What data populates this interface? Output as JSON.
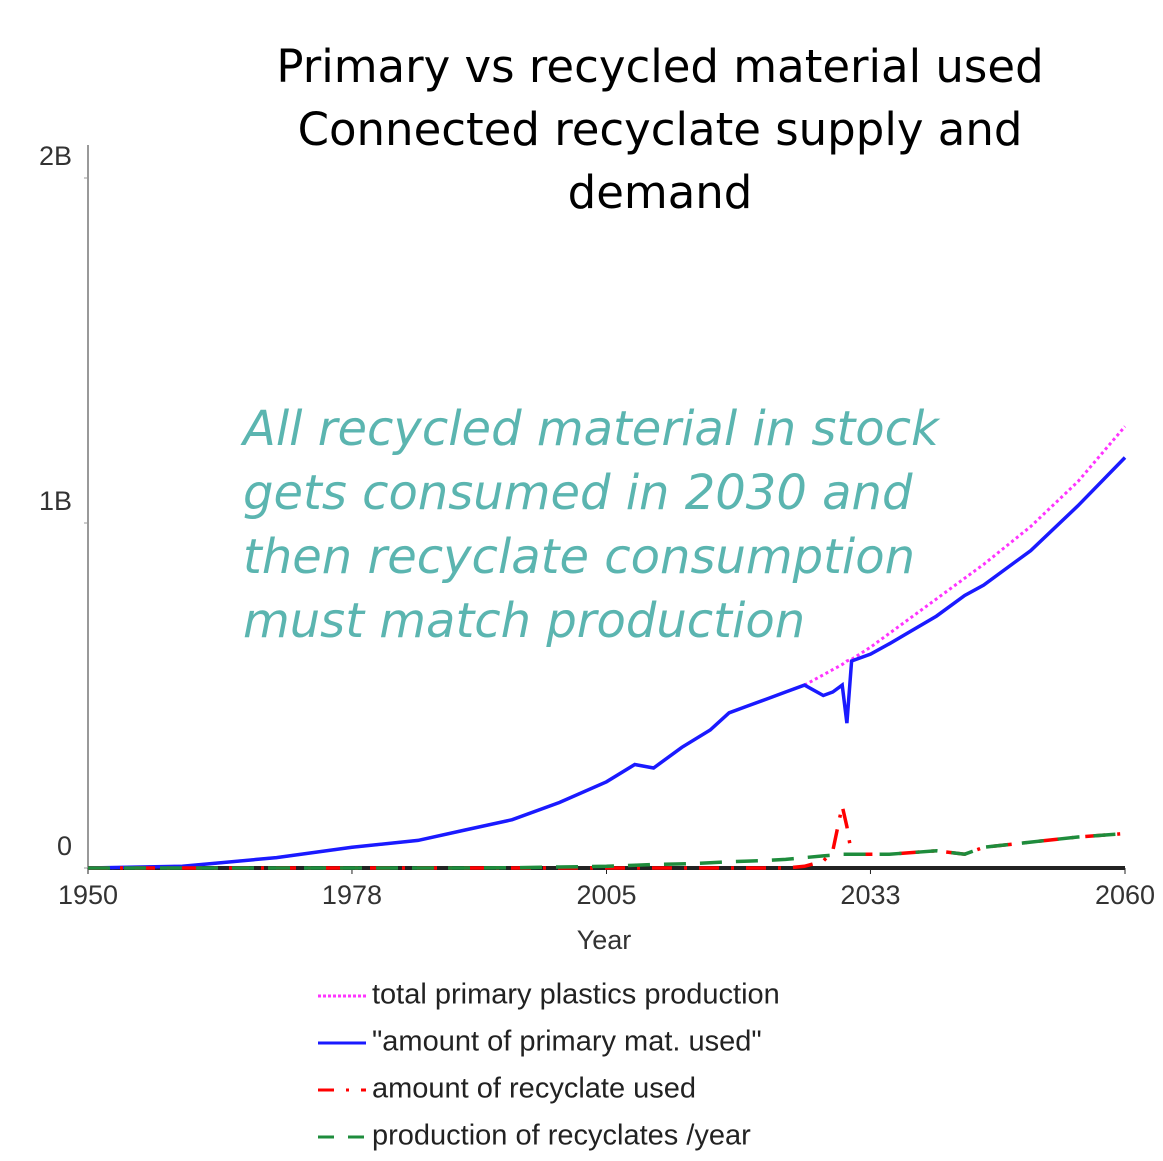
{
  "chart_data": {
    "type": "line",
    "title_lines": [
      "Primary vs recycled material used",
      "Connected recyclate supply and",
      "demand"
    ],
    "annotation_lines": [
      "All recycled material in stock",
      "gets consumed in 2030 and",
      "then recyclate consumption",
      "must match production"
    ],
    "xlabel": "Year",
    "xlim": [
      1950,
      2060
    ],
    "xticks": [
      1950,
      1978,
      2005,
      2033,
      2060
    ],
    "ylim": [
      0,
      2000000000
    ],
    "yticks": [
      {
        "value": 0,
        "label": "0"
      },
      {
        "value": 1000000000,
        "label": "1B"
      },
      {
        "value": 2000000000,
        "label": "2B"
      }
    ],
    "x": [
      1950,
      1960,
      1970,
      1978,
      1985,
      1990,
      1995,
      2000,
      2005,
      2008,
      2010,
      2013,
      2016,
      2018,
      2020,
      2022,
      2024,
      2026,
      2028,
      2029,
      2030,
      2030.5,
      2031,
      2033,
      2035,
      2040,
      2043,
      2045,
      2050,
      2055,
      2060
    ],
    "series": [
      {
        "name": "total primary plastics production",
        "color": "#ff33ff",
        "dash": "dotted",
        "values": [
          0,
          5000000,
          30000000,
          60000000,
          80000000,
          110000000,
          140000000,
          190000000,
          250000000,
          300000000,
          290000000,
          350000000,
          400000000,
          450000000,
          470000000,
          490000000,
          510000000,
          530000000,
          560000000,
          575000000,
          590000000,
          600000000,
          605000000,
          640000000,
          680000000,
          780000000,
          840000000,
          880000000,
          990000000,
          1120000000,
          1280000000
        ]
      },
      {
        "name": "\"amount of primary mat. used\"",
        "color": "#1a1aff",
        "dash": "solid",
        "values": [
          0,
          5000000,
          30000000,
          60000000,
          80000000,
          110000000,
          140000000,
          190000000,
          250000000,
          300000000,
          290000000,
          350000000,
          400000000,
          450000000,
          470000000,
          490000000,
          510000000,
          530000000,
          500000000,
          510000000,
          530000000,
          420000000,
          600000000,
          620000000,
          650000000,
          730000000,
          790000000,
          820000000,
          920000000,
          1050000000,
          1190000000
        ]
      },
      {
        "name": "amount of recyclate used",
        "color": "#ff0000",
        "dash": "dashdot",
        "values": [
          0,
          0,
          0,
          0,
          0,
          0,
          0,
          0,
          0,
          0,
          0,
          0,
          0,
          0,
          0,
          0,
          0,
          5000000,
          20000000,
          50000000,
          180000000,
          120000000,
          40000000,
          40000000,
          40000000,
          50000000,
          40000000,
          60000000,
          75000000,
          90000000,
          100000000
        ]
      },
      {
        "name": "production of recyclates /year",
        "color": "#1e8c3c",
        "dash": "dashed",
        "values": [
          0,
          0,
          0,
          0,
          0,
          0,
          1000000,
          3000000,
          5000000,
          8000000,
          10000000,
          12000000,
          15000000,
          18000000,
          20000000,
          22000000,
          25000000,
          30000000,
          35000000,
          37000000,
          40000000,
          40000000,
          40000000,
          40000000,
          40000000,
          50000000,
          40000000,
          60000000,
          75000000,
          90000000,
          100000000
        ]
      }
    ]
  }
}
